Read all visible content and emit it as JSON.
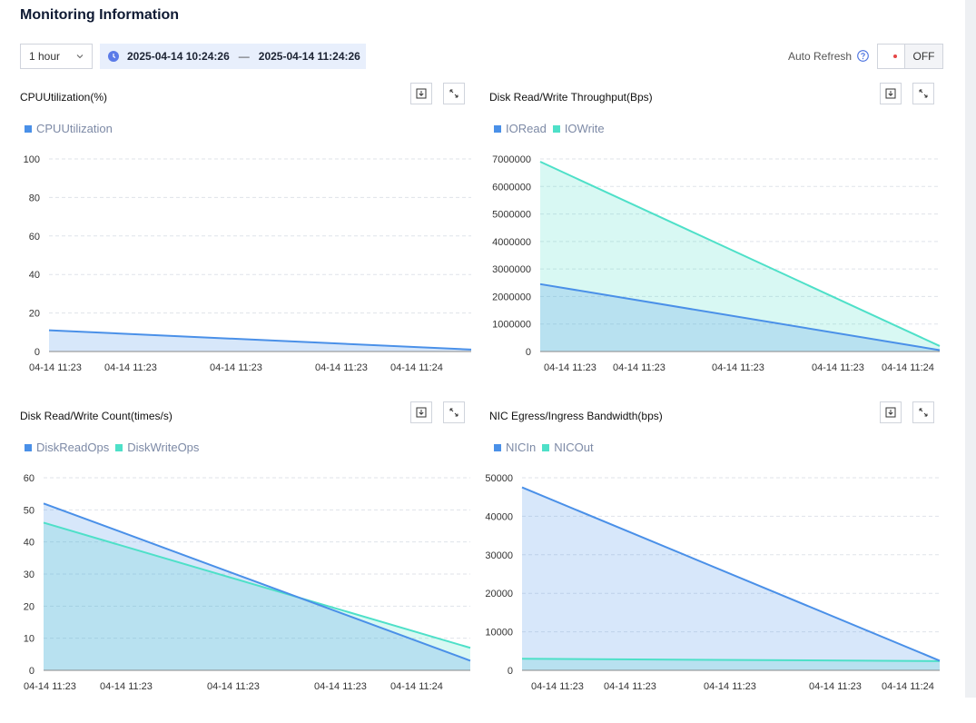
{
  "header": {
    "title": "Monitoring Information"
  },
  "toolbar": {
    "range_value": "1 hour",
    "time_start": "2025-04-14 10:24:26",
    "time_separator": "—",
    "time_end": "2025-04-14 11:24:26",
    "auto_refresh_label": "Auto Refresh",
    "toggle_state": "OFF"
  },
  "colors": {
    "blue": "#4a90e8",
    "teal": "#4ee0c8",
    "grid": "#dfe3ea",
    "accent_bg": "#e8effc"
  },
  "chart_data": [
    {
      "type": "area",
      "title": "CPUUtilization(%)",
      "x_ticks": [
        "04-14 11:23",
        "04-14 11:23",
        "04-14 11:23",
        "04-14 11:23",
        "04-14 11:24"
      ],
      "ylim": [
        0,
        100
      ],
      "yticks": [
        0,
        20,
        40,
        60,
        80,
        100
      ],
      "grid": true,
      "legend": "top-left",
      "series": [
        {
          "name": "CPUUtilization",
          "color": "#4a90e8",
          "values": [
            11,
            1
          ]
        }
      ]
    },
    {
      "type": "area",
      "title": "Disk Read/Write Throughput(Bps)",
      "x_ticks": [
        "04-14 11:23",
        "04-14 11:23",
        "04-14 11:23",
        "04-14 11:23",
        "04-14 11:24"
      ],
      "ylim": [
        0,
        7000000
      ],
      "yticks": [
        0,
        1000000,
        2000000,
        3000000,
        4000000,
        5000000,
        6000000,
        7000000
      ],
      "grid": true,
      "legend": "top-left",
      "series": [
        {
          "name": "IORead",
          "color": "#4a90e8",
          "values": [
            2450000,
            50000
          ]
        },
        {
          "name": "IOWrite",
          "color": "#4ee0c8",
          "values": [
            6900000,
            200000
          ]
        }
      ]
    },
    {
      "type": "area",
      "title": "Disk Read/Write Count(times/s)",
      "x_ticks": [
        "04-14 11:23",
        "04-14 11:23",
        "04-14 11:23",
        "04-14 11:23",
        "04-14 11:24"
      ],
      "ylim": [
        0,
        60
      ],
      "yticks": [
        0,
        10,
        20,
        30,
        40,
        50,
        60
      ],
      "grid": true,
      "legend": "top-left",
      "series": [
        {
          "name": "DiskReadOps",
          "color": "#4a90e8",
          "values": [
            52,
            3
          ]
        },
        {
          "name": "DiskWriteOps",
          "color": "#4ee0c8",
          "values": [
            46,
            7
          ]
        }
      ]
    },
    {
      "type": "area",
      "title": "NIC Egress/Ingress Bandwidth(bps)",
      "x_ticks": [
        "04-14 11:23",
        "04-14 11:23",
        "04-14 11:23",
        "04-14 11:23",
        "04-14 11:24"
      ],
      "ylim": [
        0,
        50000
      ],
      "yticks": [
        0,
        10000,
        20000,
        30000,
        40000,
        50000
      ],
      "grid": true,
      "legend": "top-left",
      "series": [
        {
          "name": "NICIn",
          "color": "#4a90e8",
          "values": [
            47500,
            2500
          ]
        },
        {
          "name": "NICOut",
          "color": "#4ee0c8",
          "values": [
            3000,
            2400
          ]
        }
      ]
    }
  ]
}
